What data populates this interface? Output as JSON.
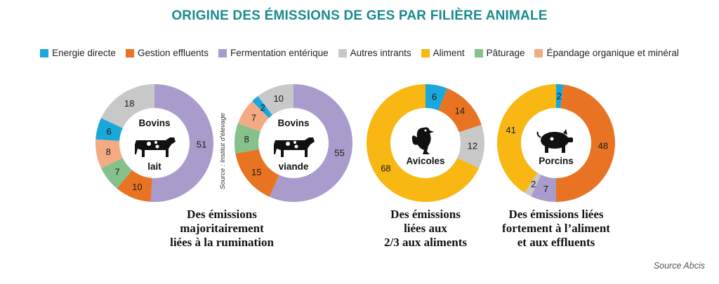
{
  "title": "ORIGINE DES ÉMISSIONS DE GES PAR FILIÈRE ANIMALE",
  "legend": [
    {
      "label": "Energie directe",
      "color": "#1aa7dc"
    },
    {
      "label": "Gestion effluents",
      "color": "#e87423"
    },
    {
      "label": "Fermentation entérique",
      "color": "#a99bcb"
    },
    {
      "label": "Autres intrants",
      "color": "#c8c8c8"
    },
    {
      "label": "Aliment",
      "color": "#f8b712"
    },
    {
      "label": "Pâturage",
      "color": "#86c08a"
    },
    {
      "label": "Épandage organique et minéral",
      "color": "#f4ab84"
    }
  ],
  "chart_data": [
    {
      "type": "pie",
      "center_label": [
        "Bovins",
        "lait"
      ],
      "icon": "cow-icon",
      "slices": [
        {
          "category": "Fermentation entérique",
          "value": 51
        },
        {
          "category": "Gestion effluents",
          "value": 10
        },
        {
          "category": "Pâturage",
          "value": 7
        },
        {
          "category": "Épandage organique et minéral",
          "value": 8
        },
        {
          "category": "Energie directe",
          "value": 6
        },
        {
          "category": "Autres intrants",
          "value": 18
        }
      ]
    },
    {
      "type": "pie",
      "center_label": [
        "Bovins",
        "viande"
      ],
      "icon": "cow-icon",
      "slices": [
        {
          "category": "Fermentation entérique",
          "value": 55
        },
        {
          "category": "Gestion effluents",
          "value": 15
        },
        {
          "category": "Pâturage",
          "value": 8
        },
        {
          "category": "Épandage organique et minéral",
          "value": 7
        },
        {
          "category": "Energie directe",
          "value": 2
        },
        {
          "category": "Autres intrants",
          "value": 10
        }
      ]
    },
    {
      "type": "pie",
      "center_label": [
        "Avicoles"
      ],
      "icon": "chicken-icon",
      "slices": [
        {
          "category": "Energie directe",
          "value": 6
        },
        {
          "category": "Gestion effluents",
          "value": 14
        },
        {
          "category": "Autres intrants",
          "value": 12
        },
        {
          "category": "Aliment",
          "value": 68
        }
      ]
    },
    {
      "type": "pie",
      "center_label": [
        "Porcins"
      ],
      "icon": "pig-icon",
      "slices": [
        {
          "category": "Energie directe",
          "value": 2
        },
        {
          "category": "Gestion effluents",
          "value": 48
        },
        {
          "category": "Fermentation entérique",
          "value": 7
        },
        {
          "category": "Autres intrants",
          "value": 2
        },
        {
          "category": "Aliment",
          "value": 41
        }
      ]
    }
  ],
  "captions": [
    [
      "Des émissions",
      "majoritairement",
      "liées à la rumination"
    ],
    [
      "Des émissions",
      "liées aux",
      "2/3 aux aliments"
    ],
    [
      "Des émissions liées",
      "fortement à l’aliment",
      "et aux effluents"
    ]
  ],
  "source_left": "Source : Institut d'élevage",
  "source_right": "Source Abcis"
}
